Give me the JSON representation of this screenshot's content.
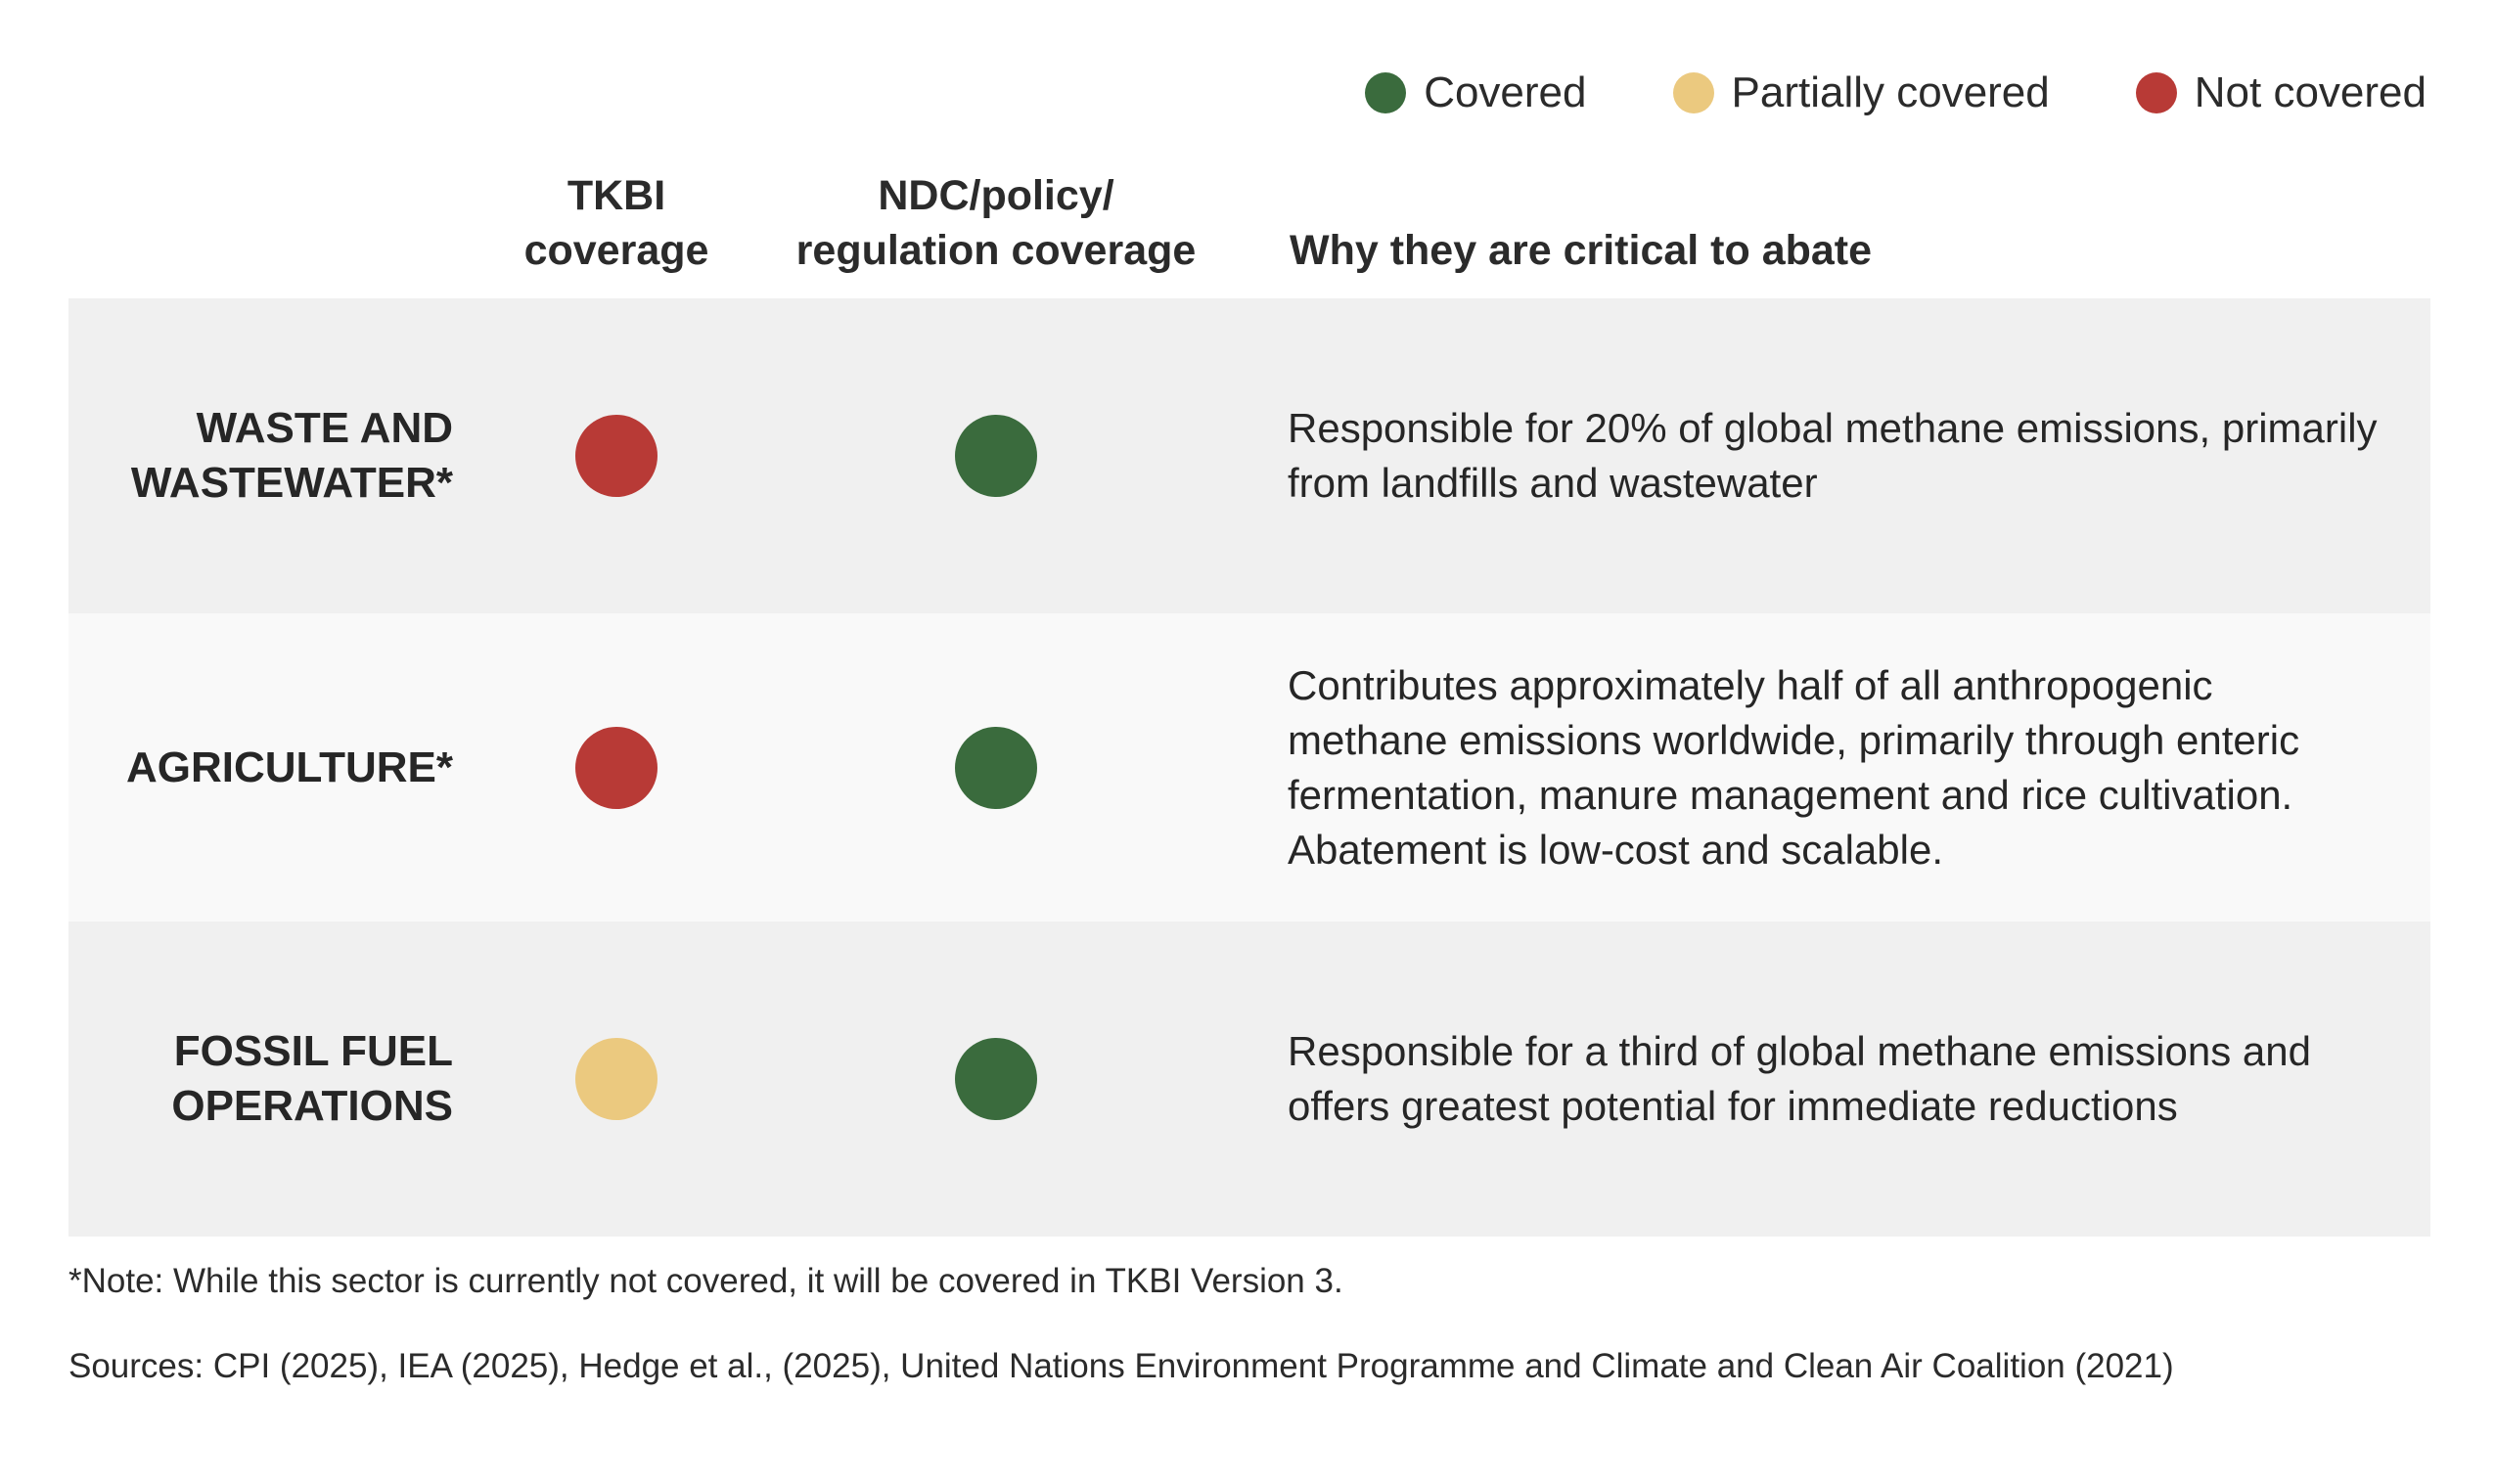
{
  "legend": {
    "items": [
      {
        "label": "Covered",
        "color": "#3a6b3d"
      },
      {
        "label": "Partially covered",
        "color": "#ebc97f"
      },
      {
        "label": "Not covered",
        "color": "#b83a36"
      }
    ]
  },
  "headers": {
    "tkbi_line1": "TKBI",
    "tkbi_line2": "coverage",
    "ndc_line1": "NDC/policy/",
    "ndc_line2": "regulation coverage",
    "why": "Why they are critical to abate"
  },
  "colors": {
    "row_dark": "#f0f0f0",
    "row_light": "#f9f9f9"
  },
  "rows": [
    {
      "sector_line1": "WASTE AND",
      "sector_line2": "WASTEWATER*",
      "tkbi_status": "Not covered",
      "tkbi_color": "#b83a36",
      "ndc_status": "Covered",
      "ndc_color": "#3a6b3d",
      "why": "Responsible for 20% of global methane emissions, primarily from landfills and wastewater"
    },
    {
      "sector_line1": "AGRICULTURE*",
      "sector_line2": "",
      "tkbi_status": "Not covered",
      "tkbi_color": "#b83a36",
      "ndc_status": "Covered",
      "ndc_color": "#3a6b3d",
      "why": "Contributes approximately half of all anthropogenic methane emissions worldwide, primarily through enteric fermentation, manure management and rice cultivation. Abatement is low-cost and scalable."
    },
    {
      "sector_line1": "FOSSIL FUEL",
      "sector_line2": "OPERATIONS",
      "tkbi_status": "Partially covered",
      "tkbi_color": "#ebc97f",
      "ndc_status": "Covered",
      "ndc_color": "#3a6b3d",
      "why": "Responsible for a third of global methane emissions and offers greatest potential for immediate reductions"
    }
  ],
  "footnotes": {
    "note": "*Note: While this sector is currently not covered, it will be covered in TKBI Version 3.",
    "sources": "Sources: CPI (2025), IEA (2025), Hedge et al., (2025), United Nations Environment Programme and Climate and Clean Air Coalition (2021)"
  }
}
